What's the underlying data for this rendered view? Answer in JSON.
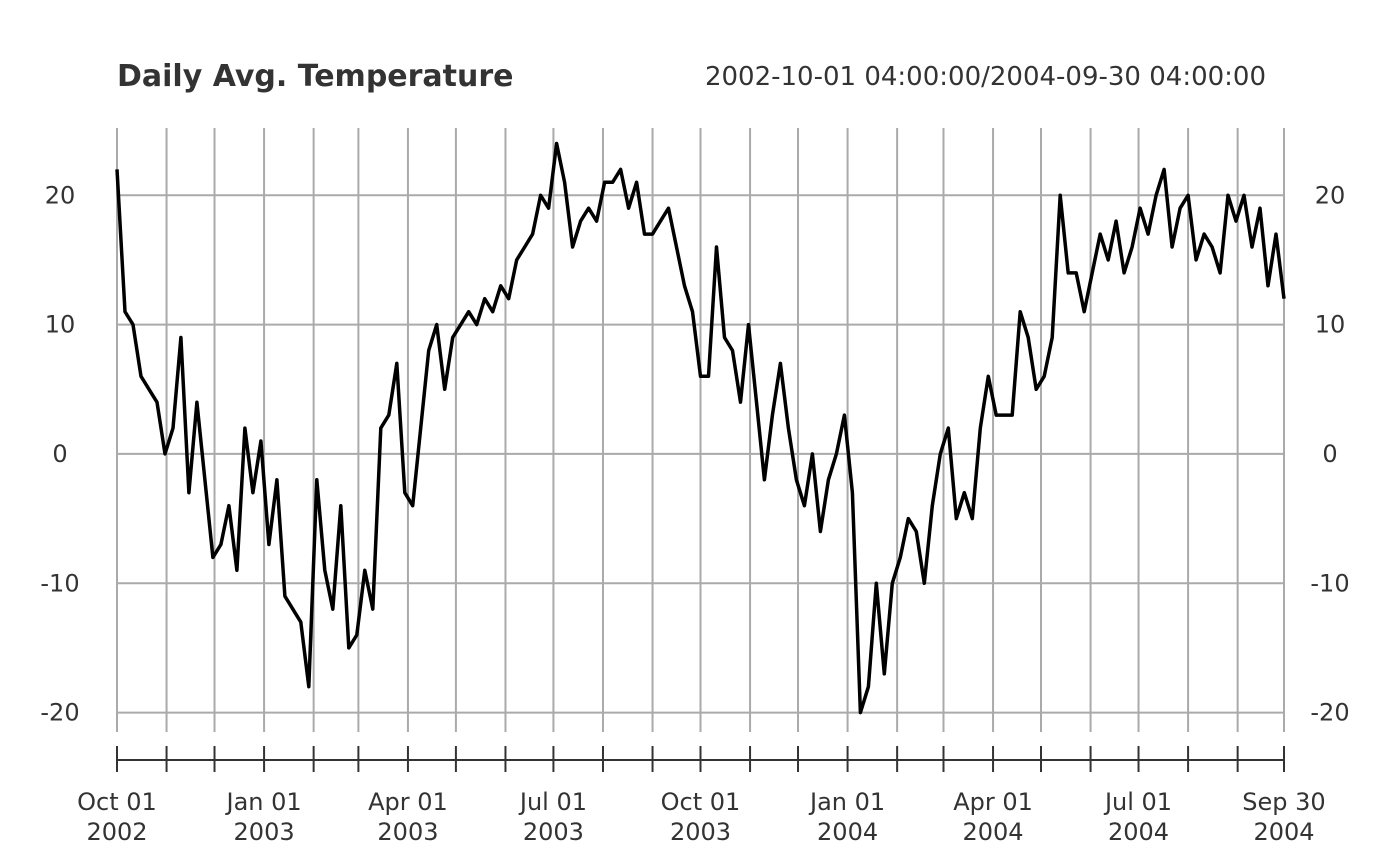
{
  "chart_data": {
    "type": "line",
    "title": "Daily Avg. Temperature",
    "subtitle": "2002-10-01 04:00:00/2004-09-30 04:00:00",
    "x": [
      "2002-10-01",
      "2002-10-06",
      "2002-10-11",
      "2002-10-16",
      "2002-10-21",
      "2002-10-26",
      "2002-10-31",
      "2002-11-05",
      "2002-11-10",
      "2002-11-15",
      "2002-11-20",
      "2002-11-25",
      "2002-11-30",
      "2002-12-05",
      "2002-12-10",
      "2002-12-15",
      "2002-12-20",
      "2002-12-25",
      "2002-12-30",
      "2003-01-04",
      "2003-01-09",
      "2003-01-14",
      "2003-01-19",
      "2003-01-24",
      "2003-01-29",
      "2003-02-03",
      "2003-02-08",
      "2003-02-13",
      "2003-02-18",
      "2003-02-23",
      "2003-02-28",
      "2003-03-05",
      "2003-03-10",
      "2003-03-15",
      "2003-03-20",
      "2003-03-25",
      "2003-03-30",
      "2003-04-04",
      "2003-04-09",
      "2003-04-14",
      "2003-04-19",
      "2003-04-24",
      "2003-04-29",
      "2003-05-04",
      "2003-05-09",
      "2003-05-14",
      "2003-05-19",
      "2003-05-24",
      "2003-05-29",
      "2003-06-03",
      "2003-06-08",
      "2003-06-13",
      "2003-06-18",
      "2003-06-23",
      "2003-06-28",
      "2003-07-03",
      "2003-07-08",
      "2003-07-13",
      "2003-07-18",
      "2003-07-23",
      "2003-07-28",
      "2003-08-02",
      "2003-08-07",
      "2003-08-12",
      "2003-08-17",
      "2003-08-22",
      "2003-08-27",
      "2003-09-01",
      "2003-09-06",
      "2003-09-11",
      "2003-09-16",
      "2003-09-21",
      "2003-09-26",
      "2003-10-01",
      "2003-10-06",
      "2003-10-11",
      "2003-10-16",
      "2003-10-21",
      "2003-10-26",
      "2003-10-31",
      "2003-11-05",
      "2003-11-10",
      "2003-11-15",
      "2003-11-20",
      "2003-11-25",
      "2003-11-30",
      "2003-12-05",
      "2003-12-10",
      "2003-12-15",
      "2003-12-20",
      "2003-12-25",
      "2003-12-30",
      "2004-01-04",
      "2004-01-09",
      "2004-01-14",
      "2004-01-19",
      "2004-01-24",
      "2004-01-29",
      "2004-02-03",
      "2004-02-08",
      "2004-02-13",
      "2004-02-18",
      "2004-02-23",
      "2004-02-28",
      "2004-03-04",
      "2004-03-09",
      "2004-03-14",
      "2004-03-19",
      "2004-03-24",
      "2004-03-29",
      "2004-04-03",
      "2004-04-08",
      "2004-04-13",
      "2004-04-18",
      "2004-04-23",
      "2004-04-28",
      "2004-05-03",
      "2004-05-08",
      "2004-05-13",
      "2004-05-18",
      "2004-05-23",
      "2004-05-28",
      "2004-06-02",
      "2004-06-07",
      "2004-06-12",
      "2004-06-17",
      "2004-06-22",
      "2004-06-27",
      "2004-07-02",
      "2004-07-07",
      "2004-07-12",
      "2004-07-17",
      "2004-07-22",
      "2004-07-27",
      "2004-08-01",
      "2004-08-06",
      "2004-08-11",
      "2004-08-16",
      "2004-08-21",
      "2004-08-26",
      "2004-08-31",
      "2004-09-05",
      "2004-09-10",
      "2004-09-15",
      "2004-09-20",
      "2004-09-25",
      "2004-09-30"
    ],
    "series": [
      {
        "color": "#000000",
        "values": [
          22,
          11,
          10,
          6,
          5,
          4,
          0,
          2,
          9,
          -3,
          4,
          -2,
          -8,
          -7,
          -4,
          -9,
          2,
          -3,
          1,
          -7,
          -2,
          -11,
          -12,
          -13,
          -18,
          -2,
          -9,
          -12,
          -4,
          -15,
          -14,
          -9,
          -12,
          2,
          3,
          7,
          -3,
          -4,
          2,
          8,
          10,
          5,
          9,
          10,
          11,
          10,
          12,
          11,
          13,
          12,
          15,
          16,
          17,
          20,
          19,
          24,
          21,
          16,
          18,
          19,
          18,
          21,
          21,
          22,
          19,
          21,
          17,
          17,
          18,
          19,
          16,
          13,
          11,
          6,
          6,
          16,
          9,
          8,
          4,
          10,
          4,
          -2,
          3,
          7,
          2,
          -2,
          -4,
          0,
          -6,
          -2,
          0,
          3,
          -3,
          -20,
          -18,
          -10,
          -17,
          -10,
          -8,
          -5,
          -6,
          -10,
          -4,
          0,
          2,
          -5,
          -3,
          -5,
          2,
          6,
          3,
          3,
          3,
          11,
          9,
          5,
          6,
          9,
          20,
          14,
          14,
          11,
          14,
          17,
          15,
          18,
          14,
          16,
          19,
          17,
          20,
          22,
          16,
          19,
          20,
          15,
          17,
          16,
          14,
          20,
          18,
          20,
          16,
          19,
          13,
          17,
          12
        ]
      }
    ],
    "xlim": [
      "2002-10-01",
      "2004-09-30"
    ],
    "xticks": [
      {
        "value": "2002-10-01",
        "label": "Oct 01\n2002"
      },
      {
        "value": "2003-01-01",
        "label": "Jan 01\n2003"
      },
      {
        "value": "2003-04-01",
        "label": "Apr 01\n2003"
      },
      {
        "value": "2003-07-01",
        "label": "Jul 01\n2003"
      },
      {
        "value": "2003-10-01",
        "label": "Oct 01\n2003"
      },
      {
        "value": "2004-01-01",
        "label": "Jan 01\n2004"
      },
      {
        "value": "2004-04-01",
        "label": "Apr 01\n2004"
      },
      {
        "value": "2004-07-01",
        "label": "Jul 01\n2004"
      },
      {
        "value": "2004-09-30",
        "label": "Sep 30\n2004"
      }
    ],
    "xminor": [
      "2002-11-01",
      "2002-12-01",
      "2003-02-01",
      "2003-03-01",
      "2003-05-01",
      "2003-06-01",
      "2003-08-01",
      "2003-09-01",
      "2003-11-01",
      "2003-12-01",
      "2004-02-01",
      "2004-03-01",
      "2004-05-01",
      "2004-06-01",
      "2004-08-01",
      "2004-09-01"
    ],
    "ylim": [
      -21.5,
      25.2
    ],
    "yticks": [
      -20,
      -10,
      0,
      10,
      20
    ],
    "grid": true
  }
}
